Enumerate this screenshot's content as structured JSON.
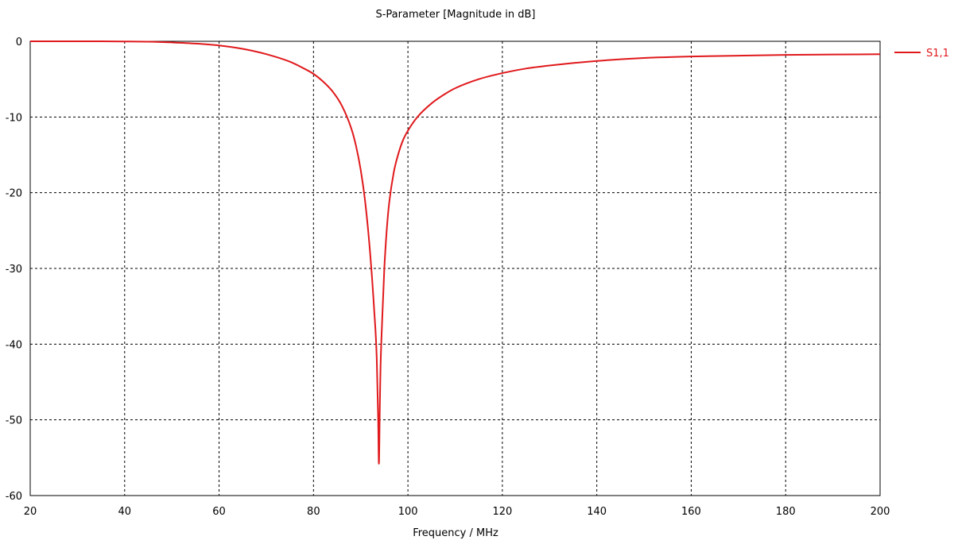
{
  "chart_data": {
    "type": "line",
    "title": "S-Parameter [Magnitude in dB]",
    "xlabel": "Frequency / MHz",
    "ylabel": "",
    "xlim": [
      20,
      200
    ],
    "ylim": [
      -60,
      0
    ],
    "xticks": [
      20,
      40,
      60,
      80,
      100,
      120,
      140,
      160,
      180,
      200
    ],
    "yticks": [
      0,
      -10,
      -20,
      -30,
      -40,
      -50,
      -60
    ],
    "grid": true,
    "grid_style": "dashed",
    "legend_position": "right",
    "series": [
      {
        "name": "S1,1",
        "color": "#e0191c",
        "points": [
          [
            20,
            0.0
          ],
          [
            30,
            0.0
          ],
          [
            40,
            -0.02
          ],
          [
            45,
            -0.05
          ],
          [
            50,
            -0.15
          ],
          [
            55,
            -0.3
          ],
          [
            60,
            -0.55
          ],
          [
            65,
            -1.0
          ],
          [
            70,
            -1.7
          ],
          [
            75,
            -2.7
          ],
          [
            78,
            -3.6
          ],
          [
            80,
            -4.3
          ],
          [
            82,
            -5.3
          ],
          [
            84,
            -6.6
          ],
          [
            86,
            -8.5
          ],
          [
            88,
            -11.5
          ],
          [
            89,
            -13.8
          ],
          [
            90,
            -17.0
          ],
          [
            91,
            -21.5
          ],
          [
            92,
            -28.0
          ],
          [
            92.8,
            -35.0
          ],
          [
            93.4,
            -42.0
          ],
          [
            93.7,
            -50.0
          ],
          [
            93.85,
            -55.8
          ],
          [
            94.05,
            -48.0
          ],
          [
            94.2,
            -43.0
          ],
          [
            94.6,
            -36.0
          ],
          [
            95.0,
            -30.0
          ],
          [
            95.5,
            -25.0
          ],
          [
            96.0,
            -21.5
          ],
          [
            97.0,
            -17.3
          ],
          [
            98.0,
            -14.8
          ],
          [
            99.0,
            -13.0
          ],
          [
            100,
            -11.8
          ],
          [
            102,
            -10.0
          ],
          [
            105,
            -8.2
          ],
          [
            108,
            -6.9
          ],
          [
            110,
            -6.2
          ],
          [
            115,
            -5.0
          ],
          [
            120,
            -4.2
          ],
          [
            125,
            -3.6
          ],
          [
            130,
            -3.2
          ],
          [
            140,
            -2.6
          ],
          [
            150,
            -2.2
          ],
          [
            160,
            -2.0
          ],
          [
            170,
            -1.9
          ],
          [
            180,
            -1.8
          ],
          [
            190,
            -1.75
          ],
          [
            200,
            -1.7
          ]
        ]
      }
    ]
  }
}
